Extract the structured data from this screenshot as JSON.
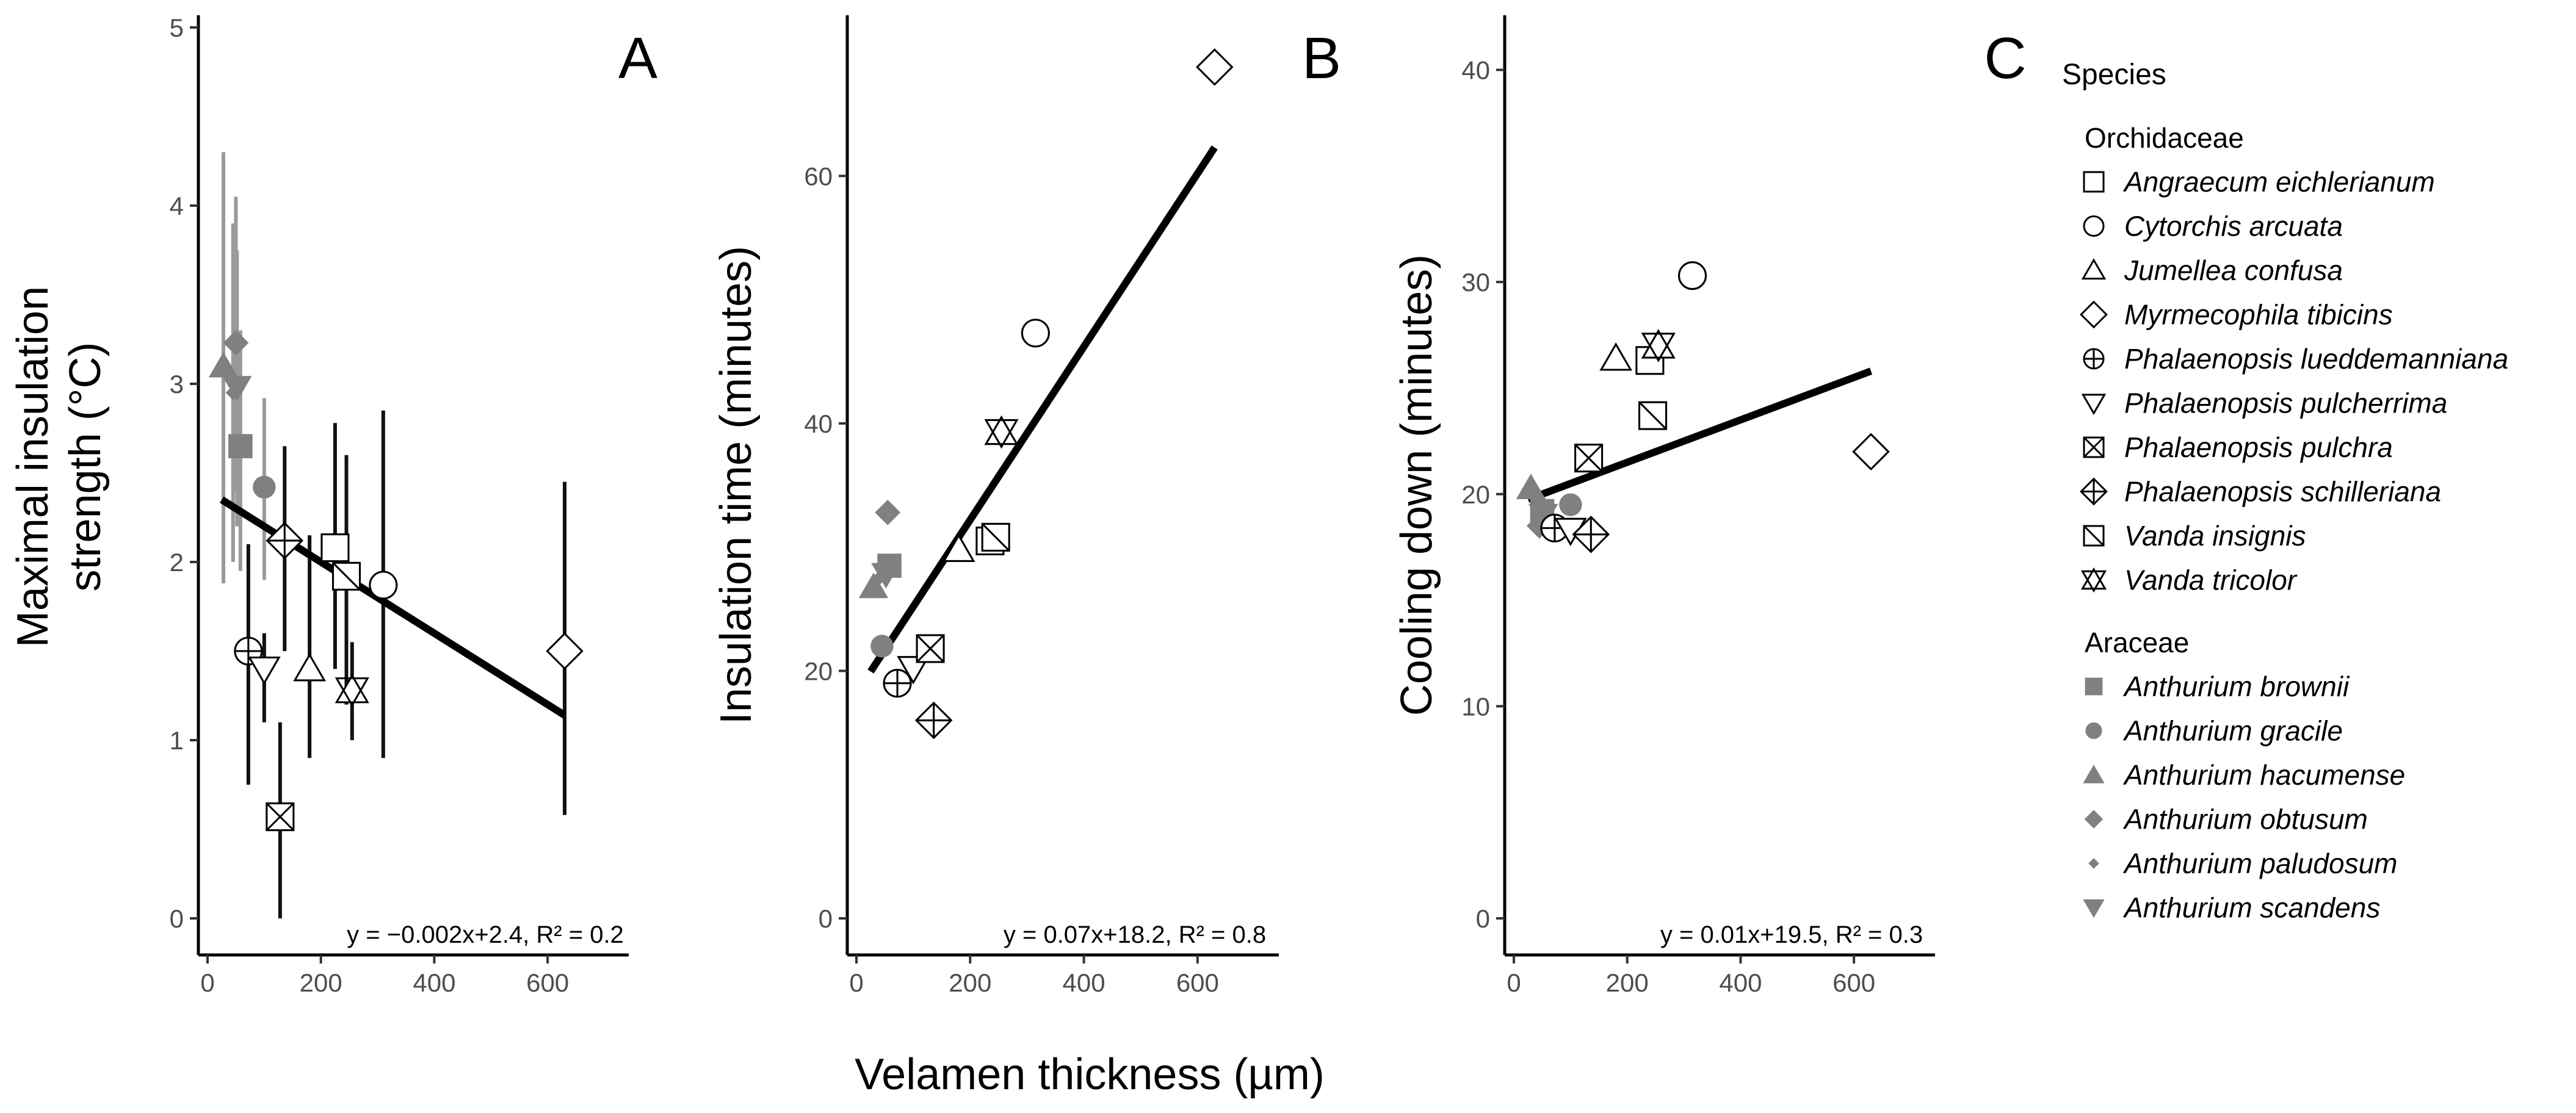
{
  "figure": {
    "xlabel": "Velamen thickness (µm)",
    "colors": {
      "orchid": "#000000",
      "aroid": "#808080"
    }
  },
  "legend": {
    "title": "Species",
    "groups": [
      {
        "label": "Orchidaceae",
        "items": [
          {
            "label": "Angraecum eichlerianum",
            "shape": "square"
          },
          {
            "label": "Cytorchis arcuata",
            "shape": "circle"
          },
          {
            "label": "Jumellea confusa",
            "shape": "triangle"
          },
          {
            "label": "Myrmecophila tibicins",
            "shape": "diamond"
          },
          {
            "label": "Phalaenopsis lueddemanniana",
            "shape": "circle-plus"
          },
          {
            "label": "Phalaenopsis pulcherrima",
            "shape": "triangle-down"
          },
          {
            "label": "Phalaenopsis pulchra",
            "shape": "square-cross"
          },
          {
            "label": "Phalaenopsis schilleriana",
            "shape": "diamond-plus"
          },
          {
            "label": "Vanda insignis",
            "shape": "square-diag"
          },
          {
            "label": "Vanda tricolor",
            "shape": "star-david"
          }
        ]
      },
      {
        "label": "Araceae",
        "items": [
          {
            "label": "Anthurium brownii",
            "shape": "filled-square"
          },
          {
            "label": "Anthurium gracile",
            "shape": "filled-circle"
          },
          {
            "label": "Anthurium hacumense",
            "shape": "filled-triangle"
          },
          {
            "label": "Anthurium obtusum",
            "shape": "filled-diamond"
          },
          {
            "label": "Anthurium paludosum",
            "shape": "filled-small-diamond"
          },
          {
            "label": "Anthurium scandens",
            "shape": "filled-triangle-down"
          }
        ]
      }
    ]
  },
  "chart_data": [
    {
      "type": "scatter",
      "panel": "A",
      "title": "",
      "xlabel": "Velamen thickness (µm)",
      "ylabel": "Maximal insulation strength (°C)",
      "xlim": [
        0,
        700
      ],
      "ylim": [
        0,
        5
      ],
      "xticks": [
        0,
        200,
        400,
        600
      ],
      "yticks": [
        0,
        1,
        2,
        3,
        4,
        5
      ],
      "error_bars": true,
      "regression": {
        "slope": -0.002,
        "intercept": 2.4,
        "x_range": [
          25,
          630
        ],
        "label": "y = −0.002x+2.4, R² = 0.2"
      },
      "points": [
        {
          "species": "Angraecum eichlerianum",
          "x": 225,
          "y": 2.08,
          "err": [
            1.4,
            2.78
          ]
        },
        {
          "species": "Cytorchis arcuata",
          "x": 310,
          "y": 1.87,
          "err": [
            0.9,
            2.85
          ]
        },
        {
          "species": "Jumellea confusa",
          "x": 180,
          "y": 1.4,
          "err": [
            0.9,
            2.15
          ]
        },
        {
          "species": "Myrmecophila tibicins",
          "x": 630,
          "y": 1.5,
          "err": [
            0.58,
            2.45
          ]
        },
        {
          "species": "Phalaenopsis lueddemanniana",
          "x": 72,
          "y": 1.5,
          "err": [
            0.75,
            2.1
          ]
        },
        {
          "species": "Phalaenopsis pulcherrima",
          "x": 100,
          "y": 1.4,
          "err": [
            1.1,
            1.6
          ]
        },
        {
          "species": "Phalaenopsis pulchra",
          "x": 128,
          "y": 0.57,
          "err": [
            0.0,
            1.1
          ]
        },
        {
          "species": "Phalaenopsis schilleriana",
          "x": 136,
          "y": 2.12,
          "err": [
            1.5,
            2.65
          ]
        },
        {
          "species": "Vanda insignis",
          "x": 245,
          "y": 1.92,
          "err": [
            1.2,
            2.6
          ]
        },
        {
          "species": "Vanda tricolor",
          "x": 255,
          "y": 1.28,
          "err": [
            1.0,
            1.55
          ]
        },
        {
          "species": "Anthurium brownii",
          "x": 58,
          "y": 2.65,
          "err": [
            1.95,
            3.3
          ]
        },
        {
          "species": "Anthurium gracile",
          "x": 100,
          "y": 2.42,
          "err": [
            1.9,
            2.92
          ]
        },
        {
          "species": "Anthurium hacumense",
          "x": 28,
          "y": 3.1,
          "err": [
            1.88,
            4.3
          ]
        },
        {
          "species": "Anthurium obtusum",
          "x": 50,
          "y": 3.23,
          "err": [
            2.4,
            4.05
          ]
        },
        {
          "species": "Anthurium paludosum",
          "x": 45,
          "y": 2.95,
          "err": [
            2.0,
            3.9
          ]
        },
        {
          "species": "Anthurium scandens",
          "x": 52,
          "y": 2.98,
          "err": [
            2.2,
            3.75
          ]
        }
      ]
    },
    {
      "type": "scatter",
      "panel": "B",
      "title": "",
      "xlabel": "Velamen thickness (µm)",
      "ylabel": "Insulation time (minutes)",
      "xlim": [
        0,
        700
      ],
      "ylim": [
        0,
        72
      ],
      "xticks": [
        0,
        200,
        400,
        600
      ],
      "yticks": [
        0,
        20,
        40,
        60
      ],
      "error_bars": false,
      "regression": {
        "slope": 0.07,
        "intercept": 18.2,
        "x_range": [
          25,
          630
        ],
        "label": "y = 0.07x+18.2, R² = 0.8"
      },
      "points": [
        {
          "species": "Angraecum eichlerianum",
          "x": 235,
          "y": 30.5
        },
        {
          "species": "Cytorchis arcuata",
          "x": 315,
          "y": 47.3
        },
        {
          "species": "Jumellea confusa",
          "x": 180,
          "y": 29.8
        },
        {
          "species": "Myrmecophila tibicins",
          "x": 630,
          "y": 68.8
        },
        {
          "species": "Phalaenopsis lueddemanniana",
          "x": 72,
          "y": 19.0
        },
        {
          "species": "Phalaenopsis pulcherrima",
          "x": 100,
          "y": 20.2
        },
        {
          "species": "Phalaenopsis pulchra",
          "x": 130,
          "y": 21.8
        },
        {
          "species": "Phalaenopsis schilleriana",
          "x": 136,
          "y": 16.0
        },
        {
          "species": "Vanda insignis",
          "x": 245,
          "y": 30.8
        },
        {
          "species": "Vanda tricolor",
          "x": 255,
          "y": 39.3
        },
        {
          "species": "Anthurium brownii",
          "x": 58,
          "y": 28.5
        },
        {
          "species": "Anthurium gracile",
          "x": 45,
          "y": 22.0
        },
        {
          "species": "Anthurium hacumense",
          "x": 30,
          "y": 26.8
        },
        {
          "species": "Anthurium obtusum",
          "x": 55,
          "y": 32.8
        },
        {
          "species": "Anthurium paludosum",
          "x": 40,
          "y": 27.5
        },
        {
          "species": "Anthurium scandens",
          "x": 52,
          "y": 27.8
        }
      ]
    },
    {
      "type": "scatter",
      "panel": "C",
      "title": "",
      "xlabel": "Velamen thickness (µm)",
      "ylabel": "Cooling down (minutes)",
      "xlim": [
        0,
        700
      ],
      "ylim": [
        0,
        42
      ],
      "xticks": [
        0,
        200,
        400,
        600
      ],
      "yticks": [
        0,
        10,
        20,
        30,
        40
      ],
      "error_bars": false,
      "regression": {
        "slope": 0.01,
        "intercept": 19.5,
        "x_range": [
          25,
          630
        ],
        "label": "y = 0.01x+19.5, R² = 0.3"
      },
      "points": [
        {
          "species": "Angraecum eichlerianum",
          "x": 240,
          "y": 26.3
        },
        {
          "species": "Cytorchis arcuata",
          "x": 315,
          "y": 30.3
        },
        {
          "species": "Jumellea confusa",
          "x": 180,
          "y": 26.4
        },
        {
          "species": "Myrmecophila tibicins",
          "x": 630,
          "y": 22.0
        },
        {
          "species": "Phalaenopsis lueddemanniana",
          "x": 72,
          "y": 18.4
        },
        {
          "species": "Phalaenopsis pulcherrima",
          "x": 100,
          "y": 18.3
        },
        {
          "species": "Phalaenopsis pulchra",
          "x": 132,
          "y": 21.7
        },
        {
          "species": "Phalaenopsis schilleriana",
          "x": 136,
          "y": 18.1
        },
        {
          "species": "Vanda insignis",
          "x": 245,
          "y": 23.7
        },
        {
          "species": "Vanda tricolor",
          "x": 255,
          "y": 27.0
        },
        {
          "species": "Anthurium brownii",
          "x": 50,
          "y": 19.2
        },
        {
          "species": "Anthurium gracile",
          "x": 100,
          "y": 19.5
        },
        {
          "species": "Anthurium hacumense",
          "x": 30,
          "y": 20.3
        },
        {
          "species": "Anthurium obtusum",
          "x": 45,
          "y": 18.5
        },
        {
          "species": "Anthurium paludosum",
          "x": 40,
          "y": 19.8
        },
        {
          "species": "Anthurium scandens",
          "x": 52,
          "y": 19.0
        }
      ]
    }
  ]
}
